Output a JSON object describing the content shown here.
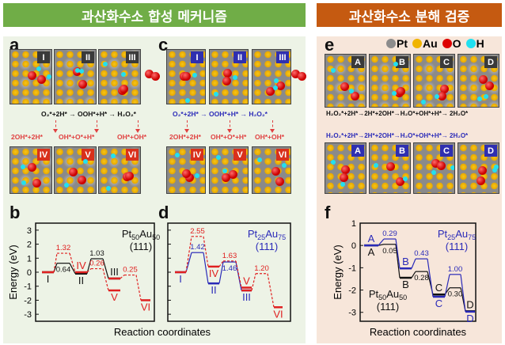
{
  "headers": {
    "synthesis": "과산화수소 합성 메커니즘",
    "decomposition": "과산화수소 분해 검증"
  },
  "colors": {
    "green": "#70ad47",
    "orange": "#c55a11",
    "green_bg": "#edf3e6",
    "orange_bg": "#f7e6da",
    "black": "#111111",
    "red": "#e02020",
    "blue": "#2a2ab8"
  },
  "panels": {
    "a": "a",
    "b": "b",
    "c": "c",
    "d": "d",
    "e": "e",
    "f": "f"
  },
  "legend": [
    {
      "symbol": "Pt",
      "color": "#8c8c8c"
    },
    {
      "symbol": "Au",
      "color": "#f0b400"
    },
    {
      "symbol": "O",
      "color": "#dd0000"
    },
    {
      "symbol": "H",
      "color": "#22e0f0"
    }
  ],
  "panel_a": {
    "tiles_top": [
      "I",
      "II",
      "III"
    ],
    "tiles_bottom": [
      "IV",
      "V",
      "VI"
    ],
    "eq_top": "O₂*+2H* → OOH*+H* → H₂O₂*",
    "eq_bottom": [
      "2OH*+2H*",
      "OH*+O*+H*",
      "OH*+OH*"
    ]
  },
  "panel_c": {
    "tiles_top": [
      "I",
      "II",
      "III"
    ],
    "tiles_bottom": [
      "IV",
      "V",
      "VI"
    ],
    "eq_top": "O₂*+2H* → OOH*+H* → H₂O₂*",
    "eq_bottom": [
      "2OH*+2H*",
      "OH*+O*+H*",
      "OH*+OH*"
    ]
  },
  "panel_e": {
    "tiles_top": [
      "A",
      "B",
      "C",
      "D"
    ],
    "tiles_bottom": [
      "A",
      "B",
      "C",
      "D"
    ],
    "eq_top": "H₂O₂*+2H*→2H*+2OH*→H₂O*+OH*+H*→ 2H₂O*",
    "eq_bottom": "H₂O₂*+2H*→2H*+2OH*→H₂O*+OH*+H*→ 2H₂O*"
  },
  "chart_data": [
    {
      "type": "line",
      "panel": "b",
      "ylabel": "Energy (eV)",
      "xlabel": "Reaction coordinates",
      "ylim": [
        -3.5,
        3.5
      ],
      "yticks": [
        "3",
        "2",
        "1",
        "0",
        "-1",
        "-2",
        "-3"
      ],
      "annotation": {
        "formula": "Pt",
        "sub1": "50",
        "mid": "Au",
        "sub2": "50",
        "facet": "(111)",
        "color": "#111111"
      },
      "series": [
        {
          "color": "#111111",
          "style": "solid",
          "points": [
            {
              "slot": 0,
              "e": 0,
              "label": "I",
              "pos": "below"
            },
            {
              "slot": 1,
              "e": 0.64,
              "label": "0.64",
              "pos": "below"
            },
            {
              "slot": 2,
              "e": -0.1,
              "label": "II",
              "pos": "below"
            },
            {
              "slot": 3,
              "e": 0.96,
              "label": "1.03",
              "pos": "above"
            },
            {
              "slot": 4,
              "e": -0.45,
              "label": "III",
              "pos": "above"
            }
          ]
        },
        {
          "color": "#e02020",
          "style": "dashed",
          "points": [
            {
              "slot": 0,
              "e": 0,
              "label": "",
              "pos": "above"
            },
            {
              "slot": 1,
              "e": 1.35,
              "label": "1.32",
              "pos": "above"
            },
            {
              "slot": 2,
              "e": 0.0,
              "label": "IV",
              "pos": "above"
            },
            {
              "slot": 3,
              "e": 0.25,
              "label": "0.26",
              "pos": "above"
            },
            {
              "slot": 4,
              "e": -1.3,
              "label": "V",
              "pos": "below"
            }
          ]
        },
        {
          "color": "#e02020",
          "style": "dashed",
          "points": [
            {
              "slot": 4,
              "e": -0.45,
              "label": "",
              "pos": "above"
            },
            {
              "slot": 5,
              "e": -0.2,
              "label": "0.25",
              "pos": "above"
            },
            {
              "slot": 6,
              "e": -2.0,
              "label": "VI",
              "pos": "below"
            }
          ]
        }
      ]
    },
    {
      "type": "line",
      "panel": "d",
      "ylabel": "",
      "xlabel": "Reaction coordinates",
      "ylim": [
        -3.5,
        3.5
      ],
      "yticks": [],
      "annotation": {
        "formula": "Pt",
        "sub1": "25",
        "mid": "Au",
        "sub2": "75",
        "facet": "(111)",
        "color": "#2a2ab8"
      },
      "series": [
        {
          "color": "#2a2ab8",
          "style": "solid",
          "points": [
            {
              "slot": 0,
              "e": 0,
              "label": "I",
              "pos": "below"
            },
            {
              "slot": 1,
              "e": 1.4,
              "label": "1.42",
              "pos": "above"
            },
            {
              "slot": 2,
              "e": -0.8,
              "label": "II",
              "pos": "below"
            },
            {
              "slot": 3,
              "e": 0.73,
              "label": "1.46",
              "pos": "below"
            },
            {
              "slot": 4,
              "e": -1.3,
              "label": "III",
              "pos": "below"
            }
          ]
        },
        {
          "color": "#e02020",
          "style": "dashed",
          "points": [
            {
              "slot": 0,
              "e": 0,
              "label": "",
              "pos": "above"
            },
            {
              "slot": 1,
              "e": 2.55,
              "label": "2.55",
              "pos": "above"
            },
            {
              "slot": 2,
              "e": 0.4,
              "label": "IV",
              "pos": "below"
            },
            {
              "slot": 3,
              "e": 0.8,
              "label": "1.63",
              "pos": "above"
            },
            {
              "slot": 4,
              "e": -1.1,
              "label": "V",
              "pos": "above"
            }
          ]
        },
        {
          "color": "#e02020",
          "style": "dashed",
          "points": [
            {
              "slot": 4,
              "e": -1.3,
              "label": "",
              "pos": "above"
            },
            {
              "slot": 5,
              "e": -0.1,
              "label": "1.20",
              "pos": "above"
            },
            {
              "slot": 6,
              "e": -2.5,
              "label": "VI",
              "pos": "below"
            }
          ]
        }
      ]
    },
    {
      "type": "line",
      "panel": "f",
      "ylabel": "Energy (eV)",
      "xlabel": "Reaction coordinates",
      "ylim": [
        -3.4,
        1.0
      ],
      "yticks": [
        "1",
        "0",
        "-1",
        "-2",
        "-3"
      ],
      "annotations": [
        {
          "formula": "Pt",
          "sub1": "25",
          "mid": "Au",
          "sub2": "75",
          "facet": "(111)",
          "color": "#2a2ab8"
        },
        {
          "formula": "Pt",
          "sub1": "50",
          "mid": "Au",
          "sub2": "50",
          "facet": "(111)",
          "color": "#111111"
        }
      ],
      "series": [
        {
          "color": "#111111",
          "style": "solid",
          "points": [
            {
              "slot": 0,
              "e": 0,
              "label": "A",
              "pos": "below"
            },
            {
              "slot": 1,
              "e": 0.05,
              "label": "0.05",
              "pos": "below"
            },
            {
              "slot": 2,
              "e": -1.45,
              "label": "B",
              "pos": "below"
            },
            {
              "slot": 3,
              "e": -1.17,
              "label": "0.28",
              "pos": "below"
            },
            {
              "slot": 4,
              "e": -2.2,
              "label": "C",
              "pos": "above"
            },
            {
              "slot": 5,
              "e": -1.9,
              "label": "0.30",
              "pos": "below"
            },
            {
              "slot": 6,
              "e": -2.95,
              "label": "D",
              "pos": "above"
            }
          ]
        },
        {
          "color": "#2a2ab8",
          "style": "solid",
          "points": [
            {
              "slot": 0,
              "e": 0,
              "label": "A",
              "pos": "above"
            },
            {
              "slot": 1,
              "e": 0.29,
              "label": "0.29",
              "pos": "above"
            },
            {
              "slot": 2,
              "e": -1.03,
              "label": "B",
              "pos": "above"
            },
            {
              "slot": 3,
              "e": -0.6,
              "label": "0.43",
              "pos": "above"
            },
            {
              "slot": 4,
              "e": -2.3,
              "label": "C",
              "pos": "below"
            },
            {
              "slot": 5,
              "e": -1.3,
              "label": "1.00",
              "pos": "above"
            },
            {
              "slot": 6,
              "e": -2.97,
              "label": "D",
              "pos": "below"
            }
          ]
        }
      ]
    }
  ]
}
